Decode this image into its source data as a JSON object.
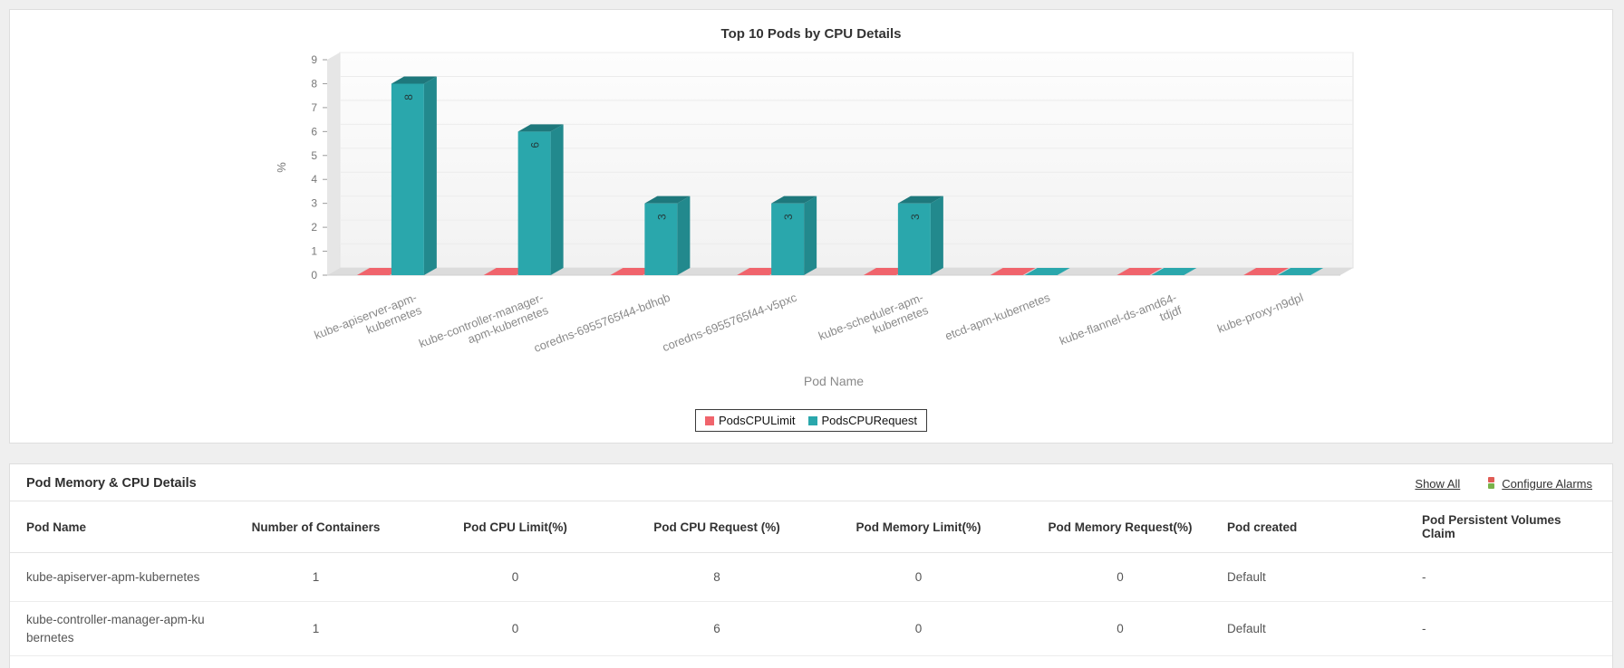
{
  "chart_data": {
    "type": "bar",
    "title": "Top 10 Pods by CPU Details",
    "xlabel": "Pod Name",
    "ylabel": "%",
    "ylim": [
      0,
      9
    ],
    "y_ticks": [
      0,
      1,
      2,
      3,
      4,
      5,
      6,
      7,
      8,
      9
    ],
    "grid": true,
    "legend_position": "bottom",
    "categories": [
      "kube-apiserver-apm-kubernetes",
      "kube-controller-manager-apm-kubernetes",
      "coredns-6955765f44-bdhqb",
      "coredns-6955765f44-v5pxc",
      "kube-scheduler-apm-kubernetes",
      "etcd-apm-kubernetes",
      "kube-flannel-ds-amd64-tdjdf",
      "kube-proxy-n9dpl"
    ],
    "category_label_lines": [
      [
        "kube-apiserver-apm-",
        "kubernetes"
      ],
      [
        "kube-controller-manager-",
        "apm-kubernetes"
      ],
      [
        "coredns-6955765f44-bdhqb"
      ],
      [
        "coredns-6955765f44-v5pxc"
      ],
      [
        "kube-scheduler-apm-",
        "kubernetes"
      ],
      [
        "etcd-apm-kubernetes"
      ],
      [
        "kube-flannel-ds-amd64-",
        "tdjdf"
      ],
      [
        "kube-proxy-n9dpl"
      ]
    ],
    "series": [
      {
        "name": "PodsCPULimit",
        "color": "#f0646c",
        "values": [
          0,
          0,
          0,
          0,
          0,
          0,
          0,
          0
        ]
      },
      {
        "name": "PodsCPURequest",
        "color": "#2aa7ac",
        "values": [
          8,
          6,
          3,
          3,
          3,
          0,
          0,
          0
        ]
      }
    ]
  },
  "table_panel": {
    "title": "Pod Memory & CPU Details",
    "show_all_label": "Show All",
    "configure_alarms_label": "Configure Alarms",
    "columns": [
      "Pod Name",
      "Number of Containers",
      "Pod CPU Limit(%)",
      "Pod CPU Request (%)",
      "Pod Memory Limit(%)",
      "Pod Memory Request(%)",
      "Pod created",
      "Pod Persistent Volumes Claim"
    ],
    "rows": [
      [
        "kube-apiserver-apm-kubernetes",
        "1",
        "0",
        "8",
        "0",
        "0",
        "Default",
        "-"
      ],
      [
        "kube-controller-manager-apm-kubernetes",
        "1",
        "0",
        "6",
        "0",
        "0",
        "Default",
        "-"
      ]
    ]
  }
}
